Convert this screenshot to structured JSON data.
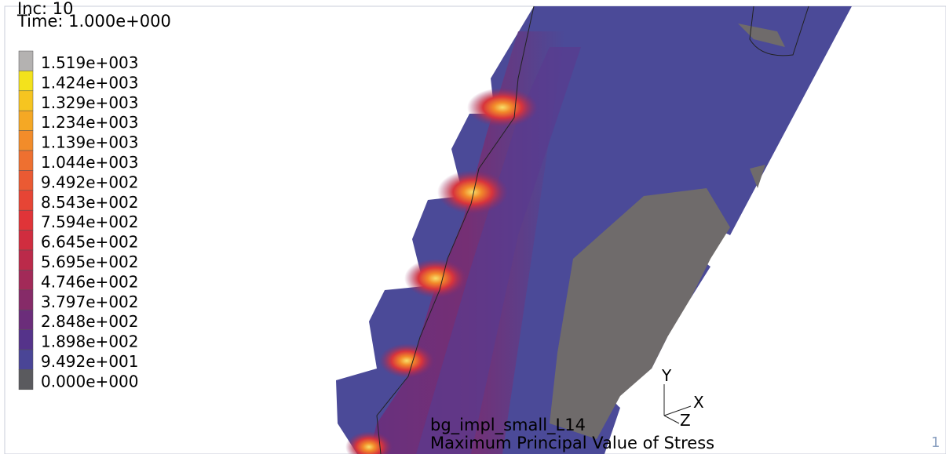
{
  "header": {
    "increment": "Inc:  10",
    "time": "Time:  1.000e+000"
  },
  "legend": {
    "entries": [
      {
        "label": "1.519e+003",
        "color": "#b4b2b1"
      },
      {
        "label": "1.424e+003",
        "color": "#f3e21c"
      },
      {
        "label": "1.329e+003",
        "color": "#f6c520"
      },
      {
        "label": "1.234e+003",
        "color": "#f5a824"
      },
      {
        "label": "1.139e+003",
        "color": "#f28c2a"
      },
      {
        "label": "1.044e+003",
        "color": "#ee7030"
      },
      {
        "label": "9.492e+002",
        "color": "#ea5a33"
      },
      {
        "label": "8.543e+002",
        "color": "#e64535"
      },
      {
        "label": "7.594e+002",
        "color": "#e03438"
      },
      {
        "label": "6.645e+002",
        "color": "#d02d3f"
      },
      {
        "label": "5.695e+002",
        "color": "#bb2a4a"
      },
      {
        "label": "4.746e+002",
        "color": "#a22a58"
      },
      {
        "label": "3.797e+002",
        "color": "#862b68"
      },
      {
        "label": "2.848e+002",
        "color": "#6b2d7a"
      },
      {
        "label": "1.898e+002",
        "color": "#55338a"
      },
      {
        "label": "9.492e+001",
        "color": "#4a4596"
      },
      {
        "label": "0.000e+000",
        "color": "#5a5a5e"
      }
    ]
  },
  "model": {
    "name": "bg_impl_small_L14",
    "quantity": "Maximum Principal Value of Stress"
  },
  "axes": {
    "x": "X",
    "y": "Y",
    "z": "Z"
  },
  "page": "1"
}
